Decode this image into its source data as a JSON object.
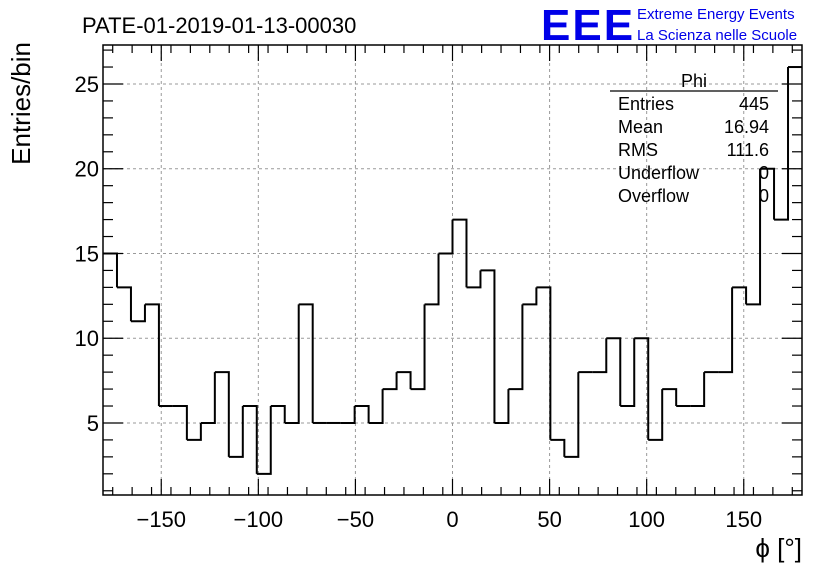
{
  "title": "PATE-01-2019-01-13-00030",
  "logo": {
    "mark": "EEE",
    "line1": "Extreme Energy Events",
    "line2": "La Scienza nelle Scuole",
    "color": "#0000e8"
  },
  "stats": {
    "name": "Phi",
    "rows": [
      {
        "label": "Entries",
        "value": "445"
      },
      {
        "label": "Mean",
        "value": "16.94"
      },
      {
        "label": "RMS",
        "value": "111.6"
      },
      {
        "label": "Underflow",
        "value": "0"
      },
      {
        "label": "Overflow",
        "value": "0"
      }
    ]
  },
  "chart_data": {
    "type": "bar",
    "histogram": true,
    "title": "PATE-01-2019-01-13-00030",
    "xlabel": "ϕ [°]",
    "ylabel": "Entries/bin",
    "xlim": [
      -180,
      180
    ],
    "ylim": [
      0.75,
      27.3
    ],
    "bin_width": 7.2,
    "xticks": [
      -150,
      -100,
      -50,
      0,
      50,
      100,
      150
    ],
    "xtick_labels": [
      "−150",
      "−100",
      "−50",
      "0",
      "50",
      "100",
      "150"
    ],
    "yticks": [
      5,
      10,
      15,
      20,
      25
    ],
    "ytick_labels": [
      "5",
      "10",
      "15",
      "20",
      "25"
    ],
    "grid": true,
    "legend": "none",
    "values": [
      15,
      13,
      11,
      12,
      6,
      6,
      4,
      5,
      8,
      3,
      6,
      2,
      6,
      5,
      12,
      5,
      5,
      5,
      6,
      5,
      7,
      8,
      7,
      12,
      15,
      17,
      13,
      14,
      5,
      7,
      12,
      13,
      4,
      3,
      8,
      8,
      10,
      6,
      10,
      4,
      7,
      6,
      6,
      8,
      8,
      13,
      12,
      20,
      17,
      26
    ],
    "line_color": "#000000"
  }
}
